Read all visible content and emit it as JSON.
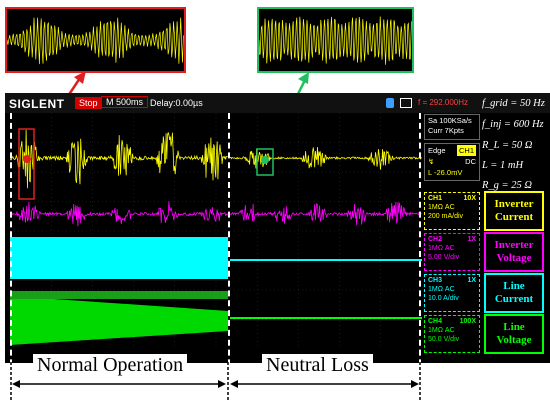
{
  "scope": {
    "brand": "SIGLENT",
    "run_state": "Stop",
    "timebase": "M 500ms",
    "delay": "Delay:0.00µs",
    "frequency": "f = 292.000Hz",
    "sample_rate": "Sa 100KSa/s",
    "memory": "Curr 7Kpts",
    "trigger": {
      "mode": "Edge",
      "source": "CH1",
      "coupling": "DC",
      "level": "L -26.0mV"
    }
  },
  "channels": [
    {
      "name": "CH1",
      "probe": "10X",
      "coupling": "1MΩ  AC",
      "scale": "200 mA/div",
      "color": "#ffff00"
    },
    {
      "name": "CH2",
      "probe": "1X",
      "coupling": "1MΩ  AC",
      "scale": "5.00 V/div",
      "color": "#ff00ff"
    },
    {
      "name": "CH3",
      "probe": "1X",
      "coupling": "1MΩ  AC",
      "scale": "10.0 A/div",
      "color": "#00ffff"
    },
    {
      "name": "CH4",
      "probe": "100X",
      "coupling": "1MΩ  AC",
      "scale": "50.0 V/div",
      "color": "#00ff00"
    }
  ],
  "params": [
    "f_grid = 50 Hz",
    "f_inj = 600 Hz",
    "R_L = 50 Ω",
    "L = 1 mH",
    "R_g = 25 Ω"
  ],
  "legend": [
    {
      "line1": "Inverter",
      "line2": "Current",
      "color": "#ffff00"
    },
    {
      "line1": "Inverter",
      "line2": "Voltage",
      "color": "#ff00ff"
    },
    {
      "line1": "Line",
      "line2": "Current",
      "color": "#00ffff"
    },
    {
      "line1": "Line",
      "line2": "Voltage",
      "color": "#00ff00"
    }
  ],
  "regions": {
    "left": "Normal Operation",
    "right": "Neutral Loss"
  },
  "zoom_colors": {
    "left": "#e02020",
    "right": "#20c060"
  }
}
